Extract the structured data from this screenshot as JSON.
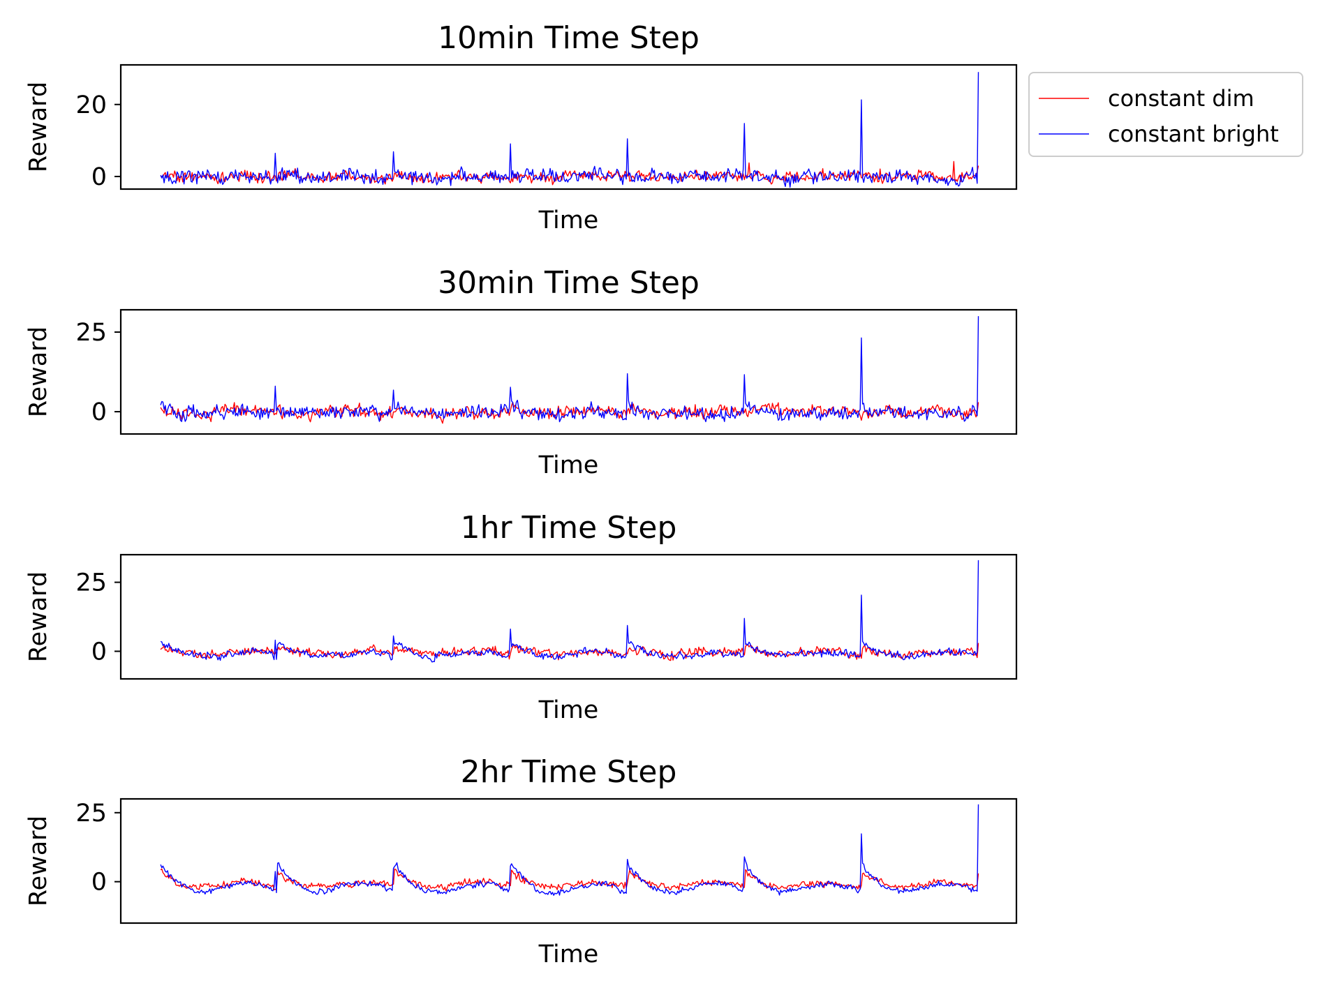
{
  "legend": {
    "placement": "upper right, outside first panel",
    "entries": [
      {
        "label": "constant dim",
        "color": "#ff0000"
      },
      {
        "label": "constant bright",
        "color": "#0000ff"
      }
    ]
  },
  "chart_data": [
    {
      "type": "line",
      "title": "10min Time Step",
      "xlabel": "Time",
      "ylabel": "Reward",
      "ylim": [
        -3.5,
        31
      ],
      "yticks": [
        {
          "value": 0,
          "label": "0"
        },
        {
          "value": 20,
          "label": "20"
        }
      ],
      "x_ticks_shown": false,
      "n_points": 700,
      "series": [
        {
          "name": "constant dim",
          "color": "#ff0000",
          "noise": 1.1,
          "trend_amp": 0.4,
          "spikes": [
            {
              "t": 0.72,
              "h": 4
            },
            {
              "t": 0.88,
              "h": 4
            },
            {
              "t": 0.97,
              "h": 4
            }
          ],
          "end_value": 3
        },
        {
          "name": "constant bright",
          "color": "#0000ff",
          "noise": 1.4,
          "trend_amp": 0.5,
          "spikes": [
            {
              "t": 0.14,
              "h": 6.5
            },
            {
              "t": 0.285,
              "h": 7.5
            },
            {
              "t": 0.428,
              "h": 8.5
            },
            {
              "t": 0.571,
              "h": 12.5
            },
            {
              "t": 0.714,
              "h": 13.5
            },
            {
              "t": 0.857,
              "h": 21
            }
          ],
          "end_value": 29
        }
      ]
    },
    {
      "type": "line",
      "title": "30min Time Step",
      "xlabel": "Time",
      "ylabel": "Reward",
      "ylim": [
        -7,
        32
      ],
      "yticks": [
        {
          "value": 0,
          "label": "0"
        },
        {
          "value": 25,
          "label": "25"
        }
      ],
      "x_ticks_shown": false,
      "n_points": 700,
      "series": [
        {
          "name": "constant dim",
          "color": "#ff0000",
          "noise": 1.4,
          "trend_amp": 1.2,
          "spikes": [],
          "end_value": 3
        },
        {
          "name": "constant bright",
          "color": "#0000ff",
          "noise": 1.6,
          "trend_amp": 2.0,
          "spikes": [
            {
              "t": 0.14,
              "h": 8
            },
            {
              "t": 0.285,
              "h": 7
            },
            {
              "t": 0.428,
              "h": 8
            },
            {
              "t": 0.571,
              "h": 13
            },
            {
              "t": 0.714,
              "h": 11
            },
            {
              "t": 0.857,
              "h": 23.5
            }
          ],
          "end_value": 30
        }
      ]
    },
    {
      "type": "line",
      "title": "1hr Time Step",
      "xlabel": "Time",
      "ylabel": "Reward",
      "ylim": [
        -10,
        35
      ],
      "yticks": [
        {
          "value": 0,
          "label": "0"
        },
        {
          "value": 25,
          "label": "25"
        }
      ],
      "x_ticks_shown": false,
      "n_points": 700,
      "series": [
        {
          "name": "constant dim",
          "color": "#ff0000",
          "noise": 1.2,
          "trend_amp": 2.5,
          "spikes": [],
          "end_value": 3
        },
        {
          "name": "constant bright",
          "color": "#0000ff",
          "noise": 1.0,
          "trend_amp": 5.0,
          "spikes": [
            {
              "t": 0.14,
              "h": 6
            },
            {
              "t": 0.285,
              "h": 7.5
            },
            {
              "t": 0.428,
              "h": 10
            },
            {
              "t": 0.571,
              "h": 12
            },
            {
              "t": 0.714,
              "h": 14
            },
            {
              "t": 0.857,
              "h": 22
            }
          ],
          "end_value": 33
        }
      ]
    },
    {
      "type": "line",
      "title": "2hr Time Step",
      "xlabel": "Time",
      "ylabel": "Reward",
      "ylim": [
        -15,
        30
      ],
      "yticks": [
        {
          "value": 0,
          "label": "0"
        },
        {
          "value": 25,
          "label": "25"
        }
      ],
      "x_ticks_shown": false,
      "n_points": 700,
      "series": [
        {
          "name": "constant dim",
          "color": "#ff0000",
          "noise": 0.9,
          "trend_amp": 5.5,
          "spikes": [],
          "end_value": 3
        },
        {
          "name": "constant bright",
          "color": "#0000ff",
          "noise": 0.8,
          "trend_amp": 10.5,
          "spikes": [
            {
              "t": 0.14,
              "h": 7
            },
            {
              "t": 0.285,
              "h": 8
            },
            {
              "t": 0.428,
              "h": 9
            },
            {
              "t": 0.571,
              "h": 12
            },
            {
              "t": 0.714,
              "h": 13
            },
            {
              "t": 0.857,
              "h": 21
            }
          ],
          "end_value": 28
        }
      ]
    }
  ]
}
